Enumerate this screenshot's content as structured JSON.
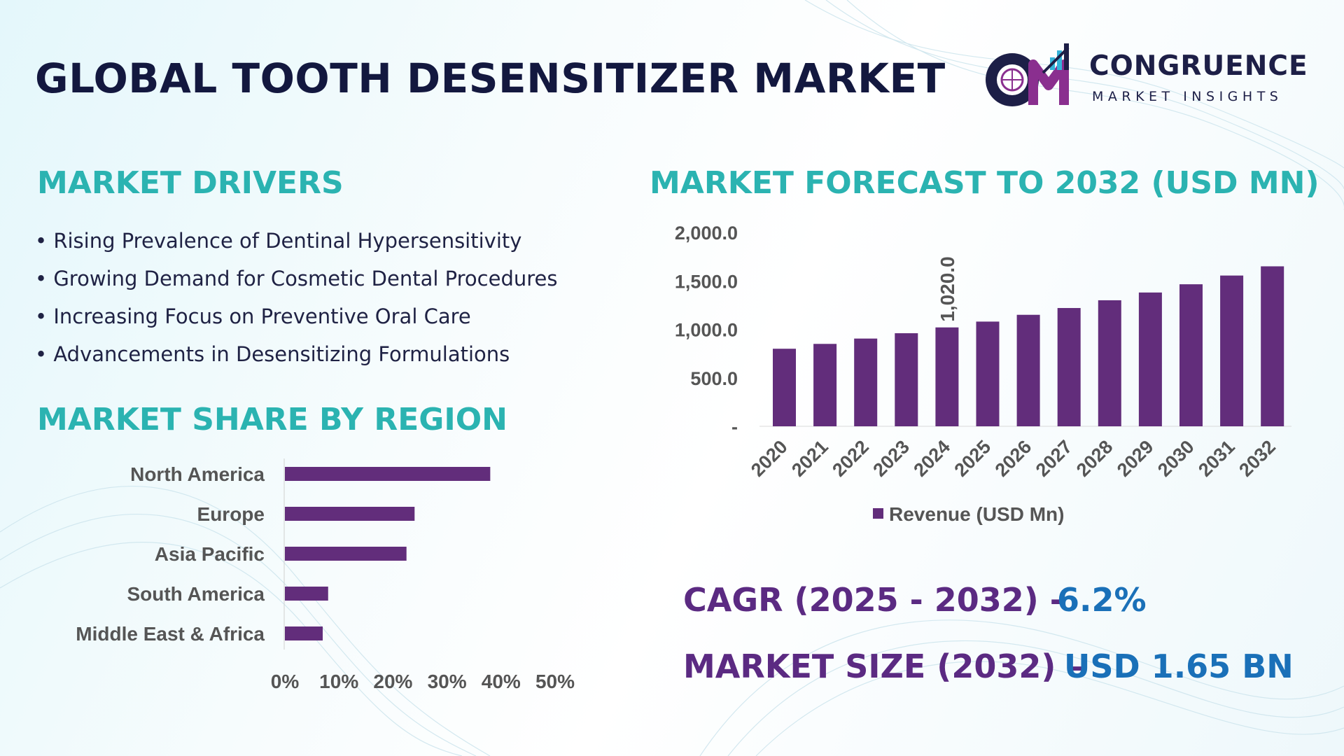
{
  "title": "GLOBAL TOOTH DESENSITIZER MARKET",
  "logo": {
    "name": "CONGRUENCE",
    "tagline": "MARKET INSIGHTS",
    "icon": "cm-globe-chart-logo",
    "colors": [
      "#1d1f47",
      "#8a2f8f",
      "#34b3d9"
    ]
  },
  "sections": {
    "drivers_heading": "MARKET DRIVERS",
    "region_heading": "MARKET SHARE BY REGION",
    "forecast_heading": "MARKET FORECAST TO 2032 (USD MN)"
  },
  "drivers": [
    "Rising Prevalence of Dentinal Hypersensitivity",
    "Growing Demand for Cosmetic Dental Procedures",
    "Increasing Focus on Preventive Oral Care",
    "Advancements in Desensitizing Formulations"
  ],
  "stats": {
    "cagr_label": "CAGR (2025 - 2032) -",
    "cagr_value": "6.2%",
    "size_label": "MARKET SIZE (2032) –",
    "size_value": "USD 1.65 BN"
  },
  "colors": {
    "bar": "#622d7b",
    "heading": "#2bb3b1",
    "title": "#13183f",
    "stat_label": "#5b2a82",
    "stat_value": "#1a70b8"
  },
  "chart_data": [
    {
      "type": "bar",
      "orientation": "horizontal",
      "categories": [
        "North America",
        "Europe",
        "Asia Pacific",
        "South America",
        "Middle East & Africa"
      ],
      "values": [
        38,
        24,
        22.5,
        8,
        7
      ],
      "x_ticks": [
        "0%",
        "10%",
        "20%",
        "30%",
        "40%",
        "50%"
      ],
      "xlim": [
        0,
        50
      ],
      "grid": false
    },
    {
      "type": "bar",
      "orientation": "vertical",
      "categories": [
        "2020",
        "2021",
        "2022",
        "2023",
        "2024",
        "2025",
        "2026",
        "2027",
        "2028",
        "2029",
        "2030",
        "2031",
        "2032"
      ],
      "series": [
        {
          "name": "Revenue (USD Mn)",
          "values": [
            800,
            850,
            905,
            960,
            1020,
            1080,
            1150,
            1220,
            1300,
            1380,
            1465,
            1555,
            1650
          ]
        }
      ],
      "data_labels": [
        {
          "index": 4,
          "text": "1,020.0"
        }
      ],
      "y_ticks": [
        "-",
        "500.0",
        "1,000.0",
        "1,500.0",
        "2,000.0"
      ],
      "ylim": [
        0,
        2000
      ],
      "legend_position": "bottom",
      "grid": false
    }
  ]
}
